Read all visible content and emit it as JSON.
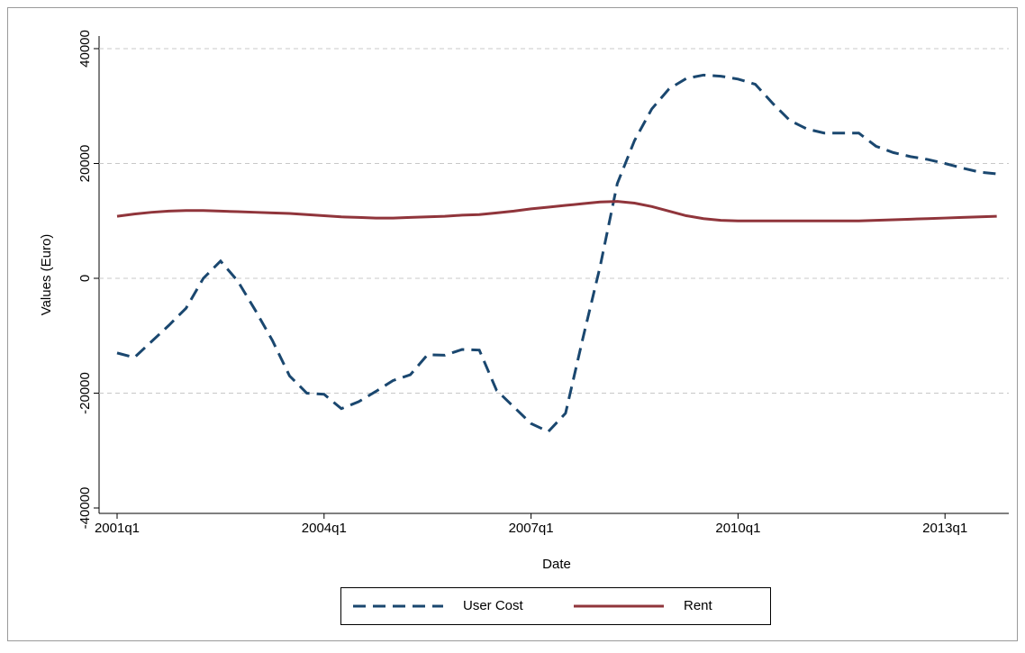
{
  "chart_data": {
    "type": "line",
    "x_label": "Date",
    "y_label": "Values (Euro)",
    "categories": [
      "2001q1",
      null,
      null,
      null,
      null,
      null,
      null,
      null,
      null,
      null,
      null,
      null,
      "2004q1",
      null,
      null,
      null,
      null,
      null,
      null,
      null,
      null,
      null,
      null,
      null,
      "2007q1",
      null,
      null,
      null,
      null,
      null,
      null,
      null,
      null,
      null,
      null,
      null,
      "2010q1",
      null,
      null,
      null,
      null,
      null,
      null,
      null,
      null,
      null,
      null,
      null,
      "2013q1",
      null,
      null,
      null
    ],
    "series": [
      {
        "name": "User Cost",
        "color": "#1a476f",
        "dash": true,
        "values": [
          -13000,
          -13800,
          -11000,
          -8200,
          -5200,
          0,
          3000,
          -500,
          -5500,
          -10800,
          -17000,
          -20000,
          -20200,
          -22700,
          -21500,
          -19700,
          -17800,
          -16800,
          -13300,
          -13400,
          -12400,
          -12500,
          -19500,
          -22400,
          -25300,
          -26700,
          -23500,
          -10500,
          2000,
          16500,
          24000,
          29500,
          33000,
          34800,
          35400,
          35200,
          34700,
          33800,
          30500,
          27500,
          26000,
          25300,
          25300,
          25300,
          23000,
          21900,
          21200,
          20700,
          20000,
          19200,
          18500,
          18200
        ]
      },
      {
        "name": "Rent",
        "color": "#90353b",
        "dash": false,
        "values": [
          10800,
          11200,
          11500,
          11700,
          11800,
          11800,
          11700,
          11600,
          11500,
          11400,
          11300,
          11100,
          10900,
          10700,
          10600,
          10500,
          10500,
          10600,
          10700,
          10800,
          11000,
          11100,
          11400,
          11700,
          12100,
          12400,
          12700,
          13000,
          13300,
          13400,
          13100,
          12500,
          11700,
          10900,
          10400,
          10100,
          10000,
          10000,
          10000,
          10000,
          10000,
          10000,
          10000,
          10000,
          10100,
          10200,
          10300,
          10400,
          10500,
          10600,
          10700,
          10800
        ]
      }
    ],
    "ylim": [
      -40000,
      40000
    ],
    "yticks": [
      -40000,
      -20000,
      0,
      20000,
      40000
    ],
    "grid": true
  }
}
